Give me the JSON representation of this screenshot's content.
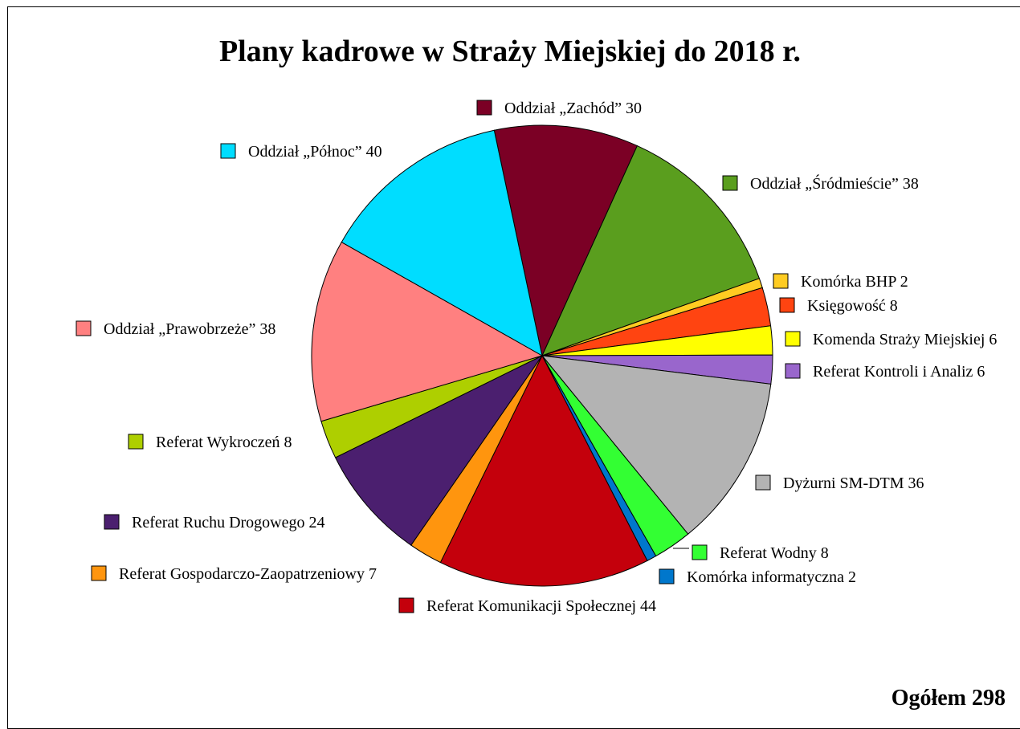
{
  "chart_data": {
    "type": "pie",
    "title": "Plany kadrowe w Straży Miejskiej do 2018 r.",
    "total_label": "Ogółem 298",
    "slices": [
      {
        "label": "Oddział „Zachód” 30",
        "value": 30,
        "color": "#7B0025"
      },
      {
        "label": "Oddział „Śródmieście” 38",
        "value": 38,
        "color": "#5A9E1E"
      },
      {
        "label": "Komórka BHP 2",
        "value": 2,
        "color": "#FFCC22"
      },
      {
        "label": "Księgowość 8",
        "value": 8,
        "color": "#FF4411"
      },
      {
        "label": "Komenda Straży Miejskiej 6",
        "value": 6,
        "color": "#FFFF00"
      },
      {
        "label": "Referat Kontroli i Analiz 6",
        "value": 6,
        "color": "#9966CC"
      },
      {
        "label": "Dyżurni SM-DTM 36",
        "value": 36,
        "color": "#B3B3B3"
      },
      {
        "label": "Referat Wodny 8",
        "value": 8,
        "color": "#33FF33"
      },
      {
        "label": "Komórka informatyczna 2",
        "value": 2,
        "color": "#0077CC"
      },
      {
        "label": "Referat Komunikacji Społecznej 44",
        "value": 44,
        "color": "#C4000C"
      },
      {
        "label": "Referat Gospodarczo-Zaopatrzeniowy 7",
        "value": 7,
        "color": "#FF950E"
      },
      {
        "label": "Referat Ruchu Drogowego 24",
        "value": 24,
        "color": "#4B1F6F"
      },
      {
        "label": "Referat Wykroczeń 8",
        "value": 8,
        "color": "#AECF00"
      },
      {
        "label": "Oddział „Prawobrzeże” 38",
        "value": 38,
        "color": "#FF8080"
      },
      {
        "label": "Oddział „Północ” 40",
        "value": 40,
        "color": "#00DDFF"
      }
    ]
  }
}
